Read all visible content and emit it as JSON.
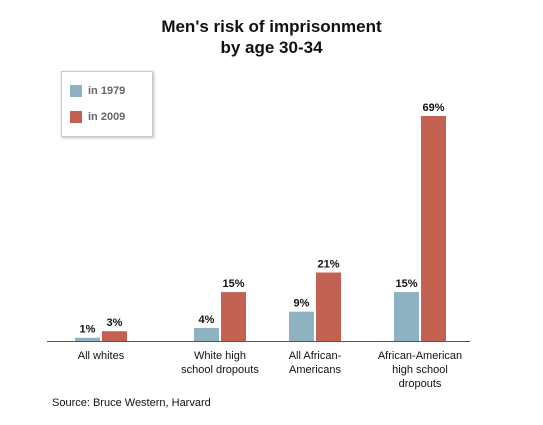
{
  "chart_data": {
    "type": "bar",
    "title": "Men's risk of imprisonment",
    "subtitle": "by age 30-34",
    "categories": [
      "All whites",
      "White high school dropouts",
      "All African-Americans",
      "African-American high school dropouts"
    ],
    "category_lines": [
      [
        "All whites"
      ],
      [
        "White high",
        "school dropouts"
      ],
      [
        "All African-",
        "Americans"
      ],
      [
        "African-American",
        "high school",
        "dropouts"
      ]
    ],
    "series": [
      {
        "name": "in 1979",
        "values": [
          1,
          4,
          9,
          15
        ],
        "labels": [
          "1%",
          "4%",
          "9%",
          "15%"
        ],
        "color": "#8fb2c2"
      },
      {
        "name": "in 2009",
        "values": [
          3,
          15,
          21,
          69
        ],
        "labels": [
          "3%",
          "15%",
          "21%",
          "69%"
        ],
        "color": "#c36252"
      }
    ],
    "ylim": [
      0,
      69
    ],
    "grid": false,
    "legend_position": "top-left"
  },
  "source": "Source: Bruce Western, Harvard"
}
